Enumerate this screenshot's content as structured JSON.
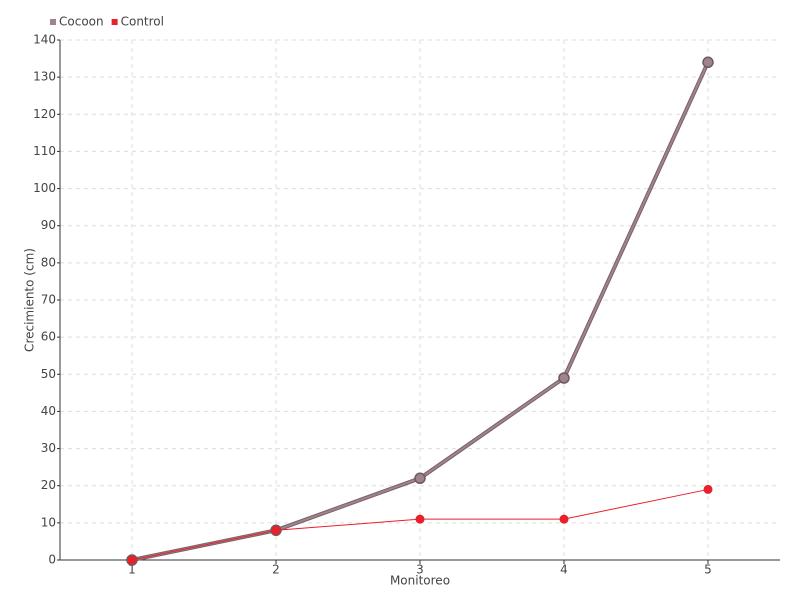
{
  "chart_data": {
    "type": "line",
    "x_label": "Monitoreo",
    "y_label": "Crecimiento (cm)",
    "categories": [
      "1",
      "2",
      "3",
      "4",
      "5"
    ],
    "series": [
      {
        "name": "Cocoon",
        "color": "#a0848c",
        "values": [
          0,
          8,
          22,
          49,
          134
        ]
      },
      {
        "name": "Control",
        "color": "#e8202c",
        "values": [
          0,
          8,
          11,
          11,
          19
        ]
      }
    ],
    "ylim": [
      0,
      140
    ],
    "yticks": [
      0,
      10,
      20,
      30,
      40,
      50,
      60,
      70,
      80,
      90,
      100,
      110,
      120,
      130,
      140
    ],
    "grid": true,
    "legend": "top-left"
  }
}
